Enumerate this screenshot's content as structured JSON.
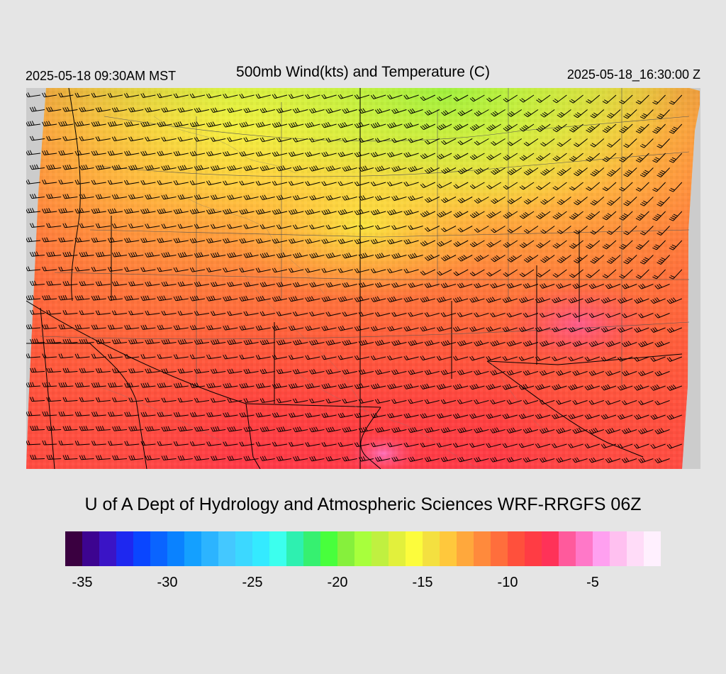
{
  "header": {
    "valid_local": "2025-05-18 09:30AM MST",
    "title": "500mb Wind(kts) and Temperature (C)",
    "valid_utc": "2025-05-18_16:30:00 Z"
  },
  "footer": {
    "credit": "U of A Dept of Hydrology and Atmospheric Sciences WRF-RRGFS 06Z"
  },
  "colorbar": {
    "colors": [
      "#3a0040",
      "#3d0490",
      "#3a14c6",
      "#1e28f0",
      "#0a46ff",
      "#0a64ff",
      "#0a82ff",
      "#14a0ff",
      "#2cb4ff",
      "#44c8ff",
      "#3cd8ff",
      "#34eaff",
      "#3cffee",
      "#2ef0b0",
      "#36f070",
      "#48ff3c",
      "#86f03c",
      "#a8ff3c",
      "#c0f040",
      "#e2f03c",
      "#fcfc3c",
      "#f4e040",
      "#ffc83c",
      "#ffa83c",
      "#ff8a3c",
      "#ff6e3c",
      "#ff503c",
      "#ff3c44",
      "#ff3258",
      "#ff5a9c",
      "#ff78c8",
      "#ffa0f0",
      "#ffc0f0",
      "#ffdcf8",
      "#fff0fe"
    ],
    "tick_labels": [
      "-35",
      "-30",
      "-25",
      "-20",
      "-15",
      "-10",
      "-5"
    ]
  },
  "map": {
    "field": "500mb temperature",
    "units": "C",
    "overlay": "wind barbs (kts)",
    "no_data_color": "#cccccc"
  }
}
